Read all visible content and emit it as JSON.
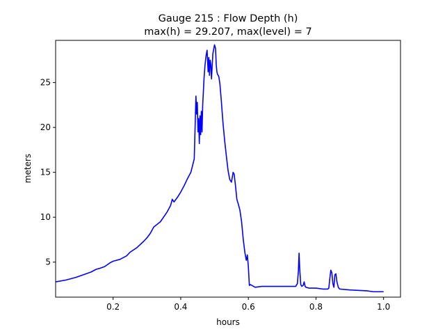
{
  "chart_data": {
    "type": "line",
    "title": "Gauge 215 : Flow Depth (h)",
    "subtitle": "max(h) =  29.207,    max(level) = 7",
    "xlabel": "hours",
    "ylabel": "meters",
    "xlim": [
      0.03,
      1.05
    ],
    "ylim": [
      1.1,
      29.7
    ],
    "xticks": [
      0.2,
      0.4,
      0.6,
      0.8,
      1.0
    ],
    "xtick_labels": [
      "0.2",
      "0.4",
      "0.6",
      "0.8",
      "1.0"
    ],
    "yticks": [
      5,
      10,
      15,
      20,
      25
    ],
    "ytick_labels": [
      "5",
      "10",
      "15",
      "20",
      "25"
    ],
    "grid": false,
    "series": [
      {
        "color": "#0000ff",
        "x": [
          0.03,
          0.06,
          0.09,
          0.12,
          0.135,
          0.15,
          0.16,
          0.175,
          0.19,
          0.2,
          0.22,
          0.24,
          0.25,
          0.27,
          0.29,
          0.3,
          0.31,
          0.32,
          0.34,
          0.36,
          0.37,
          0.375,
          0.38,
          0.39,
          0.4,
          0.41,
          0.42,
          0.43,
          0.44,
          0.445,
          0.447,
          0.449,
          0.451,
          0.453,
          0.455,
          0.457,
          0.459,
          0.461,
          0.463,
          0.465,
          0.467,
          0.469,
          0.472,
          0.475,
          0.478,
          0.481,
          0.483,
          0.485,
          0.487,
          0.489,
          0.491,
          0.493,
          0.495,
          0.497,
          0.5,
          0.503,
          0.505,
          0.507,
          0.509,
          0.511,
          0.513,
          0.516,
          0.52,
          0.525,
          0.53,
          0.535,
          0.54,
          0.545,
          0.55,
          0.555,
          0.558,
          0.562,
          0.566,
          0.57,
          0.575,
          0.58,
          0.585,
          0.59,
          0.594,
          0.597,
          0.6,
          0.603,
          0.606,
          0.62,
          0.64,
          0.66,
          0.68,
          0.7,
          0.72,
          0.74,
          0.745,
          0.748,
          0.75,
          0.752,
          0.755,
          0.758,
          0.762,
          0.765,
          0.768,
          0.77,
          0.78,
          0.8,
          0.82,
          0.835,
          0.838,
          0.841,
          0.844,
          0.847,
          0.85,
          0.853,
          0.856,
          0.859,
          0.862,
          0.866,
          0.87,
          0.9,
          0.95,
          0.97,
          0.99,
          1.0
        ],
        "y": [
          2.8,
          3.0,
          3.3,
          3.7,
          3.9,
          4.2,
          4.3,
          4.5,
          4.9,
          5.1,
          5.3,
          5.7,
          6.1,
          6.6,
          7.3,
          7.7,
          8.2,
          8.9,
          9.5,
          10.6,
          11.3,
          12.0,
          11.7,
          12.2,
          12.8,
          13.5,
          14.3,
          15.0,
          16.5,
          23.5,
          21.5,
          22.8,
          19.5,
          21.0,
          18.2,
          21.3,
          19.2,
          21.8,
          19.5,
          22.5,
          24.0,
          25.5,
          27.0,
          28.0,
          28.6,
          26.2,
          27.8,
          25.8,
          27.5,
          27.0,
          25.4,
          26.8,
          28.2,
          28.6,
          29.2,
          28.8,
          27.0,
          26.2,
          25.9,
          25.8,
          25.6,
          24.8,
          23.0,
          20.5,
          18.5,
          16.8,
          15.2,
          14.2,
          13.9,
          15.0,
          14.8,
          13.5,
          12.0,
          11.5,
          10.8,
          9.5,
          7.5,
          6.0,
          5.2,
          5.8,
          4.5,
          2.4,
          2.5,
          2.2,
          2.3,
          2.3,
          2.3,
          2.3,
          2.3,
          2.3,
          2.6,
          4.0,
          6.0,
          4.2,
          2.5,
          2.3,
          2.4,
          2.8,
          2.3,
          2.2,
          2.1,
          2.1,
          2.0,
          2.0,
          2.1,
          3.2,
          4.1,
          3.8,
          2.6,
          2.2,
          3.6,
          3.7,
          2.8,
          2.2,
          2.0,
          1.9,
          1.8,
          1.7,
          1.7,
          1.7
        ]
      }
    ]
  }
}
